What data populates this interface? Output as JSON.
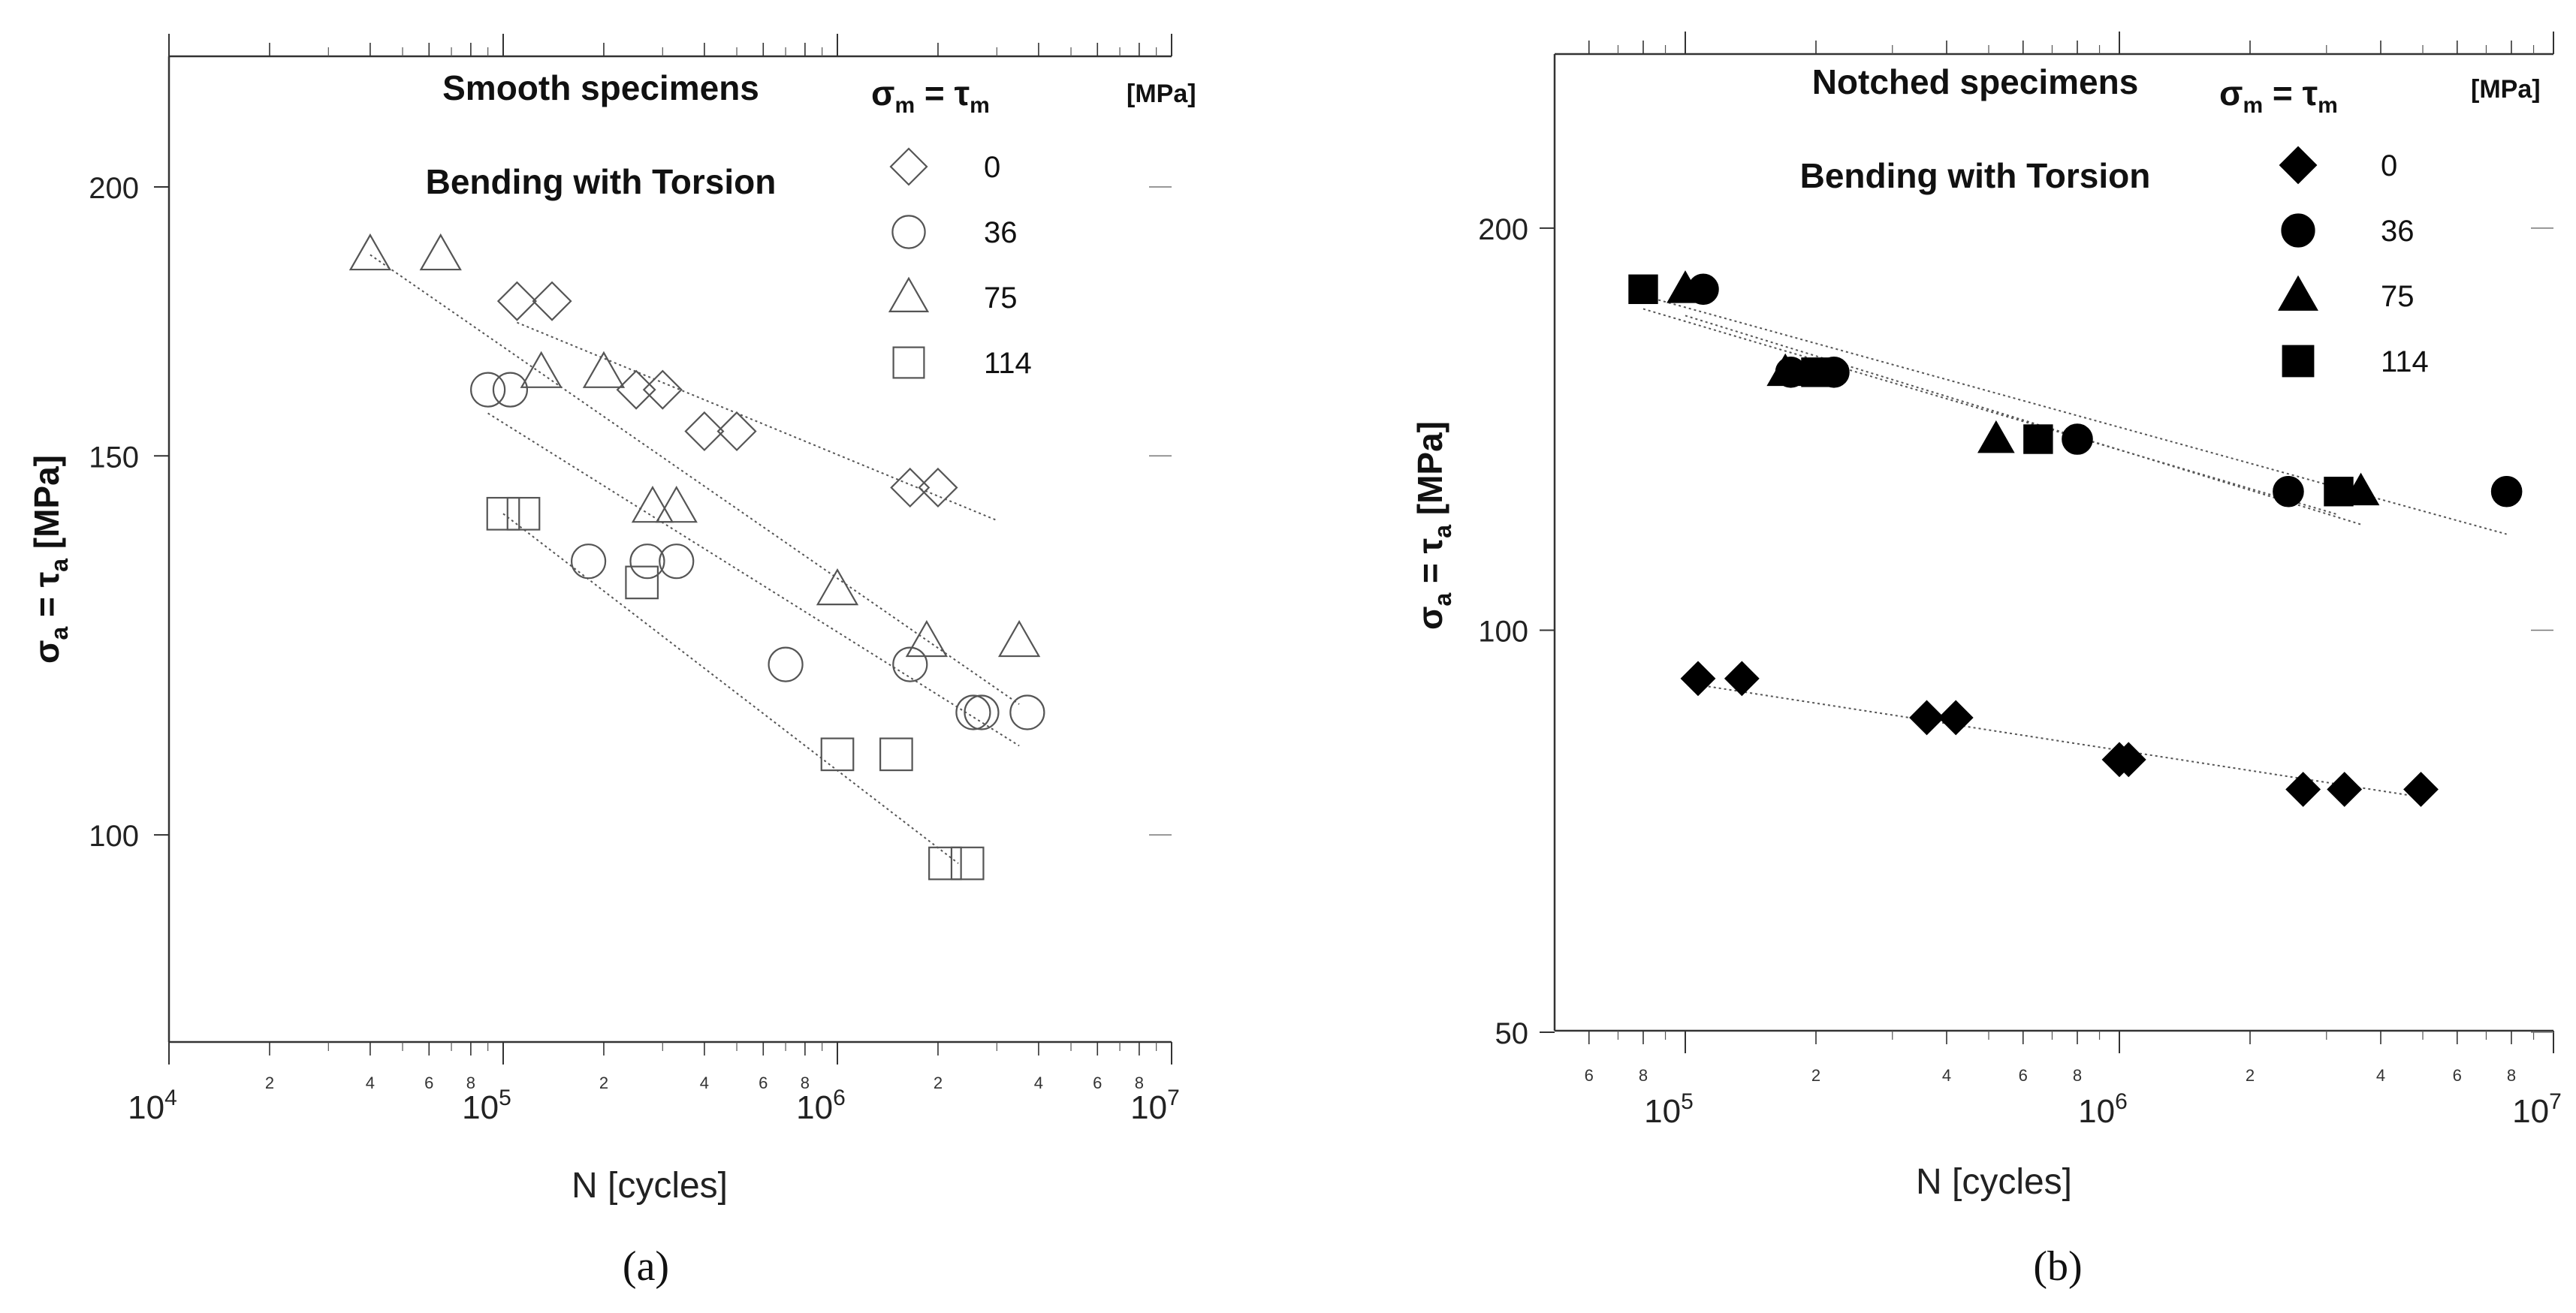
{
  "chart_data": [
    {
      "type": "scatter",
      "panel_label": "(a)",
      "title": "Smooth specimens",
      "subtitle": "Bending with Torsion",
      "xlabel": "N [cycles]",
      "ylabel_parts": [
        "σ",
        "a",
        " = τ",
        "a",
        " [MPa]"
      ],
      "x_scale": "log",
      "y_scale": "log",
      "xlim": [
        10000,
        10000000
      ],
      "ylim": [
        80,
        230
      ],
      "x_major_ticks": [
        {
          "value": 10000,
          "base": "10",
          "exp": "4"
        },
        {
          "value": 100000,
          "base": "10",
          "exp": "5"
        },
        {
          "value": 1000000,
          "base": "10",
          "exp": "6"
        },
        {
          "value": 10000000,
          "base": "10",
          "exp": "7"
        }
      ],
      "x_minor_labels": [
        "2",
        "4",
        "6",
        "8"
      ],
      "x_minor_multipliers": [
        2,
        4,
        6,
        8
      ],
      "y_ticks": [
        {
          "value": 200,
          "label": "200"
        },
        {
          "value": 150,
          "label": "150"
        },
        {
          "value": 100,
          "label": "100"
        }
      ],
      "legend_title_parts": [
        "σ",
        "m",
        " = τ",
        "m"
      ],
      "legend_unit": "[MPa]",
      "series": [
        {
          "name": "0",
          "marker": "diamond",
          "filled": false,
          "points": [
            [
              110000,
              177
            ],
            [
              140000,
              177
            ],
            [
              250000,
              161
            ],
            [
              300000,
              161
            ],
            [
              400000,
              154
            ],
            [
              500000,
              154
            ],
            [
              1650000,
              145
            ],
            [
              2000000,
              145
            ]
          ],
          "fit": [
            [
              110000,
              173
            ],
            [
              3000000,
              140
            ]
          ]
        },
        {
          "name": "36",
          "marker": "circle",
          "filled": false,
          "points": [
            [
              90000,
              161
            ],
            [
              105000,
              161
            ],
            [
              180000,
              134
            ],
            [
              270000,
              134
            ],
            [
              330000,
              134
            ],
            [
              700000,
              120
            ],
            [
              1650000,
              120
            ],
            [
              2550000,
              114
            ],
            [
              2700000,
              114
            ],
            [
              3700000,
              114
            ]
          ],
          "fit": [
            [
              90000,
              157
            ],
            [
              3500000,
              110
            ]
          ]
        },
        {
          "name": "75",
          "marker": "triangle",
          "filled": false,
          "points": [
            [
              40000,
              186
            ],
            [
              65000,
              186
            ],
            [
              130000,
              164
            ],
            [
              200000,
              164
            ],
            [
              280000,
              142
            ],
            [
              330000,
              142
            ],
            [
              1000000,
              130
            ],
            [
              1850000,
              123
            ],
            [
              3500000,
              123
            ]
          ],
          "fit": [
            [
              40000,
              186
            ],
            [
              3500000,
              115
            ]
          ]
        },
        {
          "name": "114",
          "marker": "square",
          "filled": false,
          "points": [
            [
              100000,
              141
            ],
            [
              115000,
              141
            ],
            [
              260000,
              131
            ],
            [
              1000000,
              109
            ],
            [
              1500000,
              109
            ],
            [
              2100000,
              97
            ],
            [
              2450000,
              97
            ]
          ],
          "fit": [
            [
              100000,
              141
            ],
            [
              2300000,
              97
            ]
          ]
        }
      ]
    },
    {
      "type": "scatter",
      "panel_label": "(b)",
      "title": "Notched specimens",
      "subtitle": "Bending with Torsion",
      "xlabel": "N [cycles]",
      "ylabel_parts": [
        "σ",
        "a",
        " = τ",
        "a",
        " [MPa]"
      ],
      "x_scale": "log",
      "y_scale": "log",
      "xlim": [
        50000,
        10000000
      ],
      "ylim": [
        50,
        270
      ],
      "x_major_ticks": [
        {
          "value": 100000,
          "base": "10",
          "exp": "5"
        },
        {
          "value": 1000000,
          "base": "10",
          "exp": "6"
        },
        {
          "value": 10000000,
          "base": "10",
          "exp": "7"
        }
      ],
      "x_minor_labels": [
        "6",
        "8",
        "2",
        "4",
        "6",
        "8",
        "2",
        "4",
        "6",
        "8"
      ],
      "x_minor_values": [
        60000,
        80000,
        200000,
        400000,
        600000,
        800000,
        2000000,
        4000000,
        6000000,
        8000000
      ],
      "y_ticks": [
        {
          "value": 200,
          "label": "200"
        },
        {
          "value": 100,
          "label": "100"
        },
        {
          "value": 50,
          "label": "50"
        }
      ],
      "legend_title_parts": [
        "σ",
        "m",
        " = τ",
        "m"
      ],
      "legend_unit": "[MPa]",
      "series": [
        {
          "name": "0",
          "marker": "diamond",
          "filled": true,
          "points": [
            [
              107000,
              92
            ],
            [
              135000,
              92
            ],
            [
              360000,
              86
            ],
            [
              420000,
              86
            ],
            [
              1000000,
              80
            ],
            [
              1050000,
              80
            ],
            [
              2650000,
              76
            ],
            [
              3300000,
              76
            ],
            [
              4950000,
              76
            ]
          ],
          "fit": [
            [
              107000,
              91
            ],
            [
              4950000,
              75
            ]
          ]
        },
        {
          "name": "36",
          "marker": "circle",
          "filled": true,
          "points": [
            [
              110000,
              180
            ],
            [
              175000,
              156
            ],
            [
              220000,
              156
            ],
            [
              800000,
              139
            ],
            [
              2450000,
              127
            ],
            [
              7800000,
              127
            ]
          ],
          "fit": [
            [
              80000,
              178
            ],
            [
              7800000,
              118
            ]
          ]
        },
        {
          "name": "75",
          "marker": "triangle",
          "filled": true,
          "points": [
            [
              100000,
              180
            ],
            [
              170000,
              156
            ],
            [
              520000,
              139
            ],
            [
              3600000,
              127
            ]
          ],
          "fit": [
            [
              100000,
              172
            ],
            [
              3600000,
              120
            ]
          ]
        },
        {
          "name": "114",
          "marker": "square",
          "filled": true,
          "points": [
            [
              80000,
              180
            ],
            [
              200000,
              156
            ],
            [
              650000,
              139
            ],
            [
              3200000,
              127
            ]
          ],
          "fit": [
            [
              80000,
              174
            ],
            [
              3200000,
              122
            ]
          ]
        }
      ]
    }
  ]
}
